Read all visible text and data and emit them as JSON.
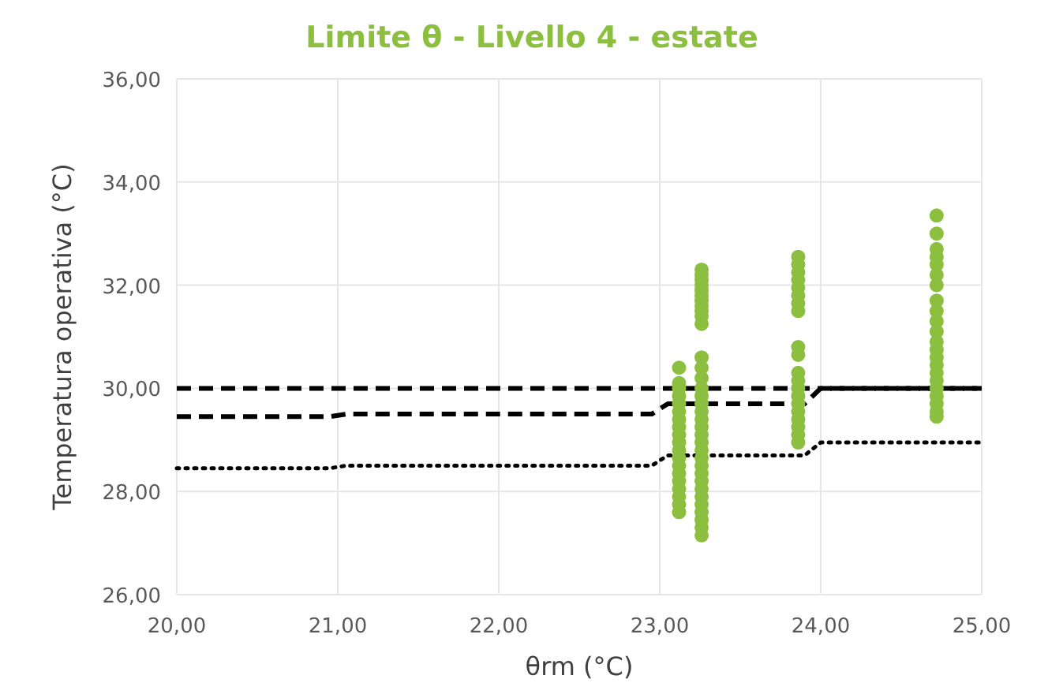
{
  "chart_data": {
    "type": "line",
    "title": "Limite θ - Livello 4 - estate",
    "xlabel": "θrm (°C)",
    "ylabel": "Temperatura operativa (°C)",
    "xlim": [
      20,
      25
    ],
    "xticks": [
      {
        "value": 20,
        "label": "20,00"
      },
      {
        "value": 21,
        "label": "21,00"
      },
      {
        "value": 22,
        "label": "22,00"
      },
      {
        "value": 23,
        "label": "23,00"
      },
      {
        "value": 24,
        "label": "24,00"
      },
      {
        "value": 25,
        "label": "25,00"
      }
    ],
    "ylim": [
      26,
      36
    ],
    "yticks": [
      {
        "value": 26,
        "label": "26,00"
      },
      {
        "value": 28,
        "label": "28,00"
      },
      {
        "value": 30,
        "label": "30,00"
      },
      {
        "value": 32,
        "label": "32,00"
      },
      {
        "value": 34,
        "label": "34,00"
      },
      {
        "value": 36,
        "label": "36,00"
      }
    ],
    "grid": true,
    "series": [
      {
        "color": "#000000",
        "line_style": "dashed",
        "marker": "none",
        "x": [
          20,
          25
        ],
        "values": [
          30.0,
          30.0
        ]
      },
      {
        "color": "#000000",
        "line_style": "dashed",
        "marker": "none",
        "x": [
          20,
          20.95,
          21.05,
          22.95,
          23.05,
          23.9,
          24.0,
          25
        ],
        "values": [
          29.45,
          29.45,
          29.5,
          29.5,
          29.7,
          29.7,
          30.0,
          30.0
        ]
      },
      {
        "color": "#000000",
        "line_style": "dotted",
        "marker": "none",
        "x": [
          20,
          20.95,
          21.05,
          22.95,
          23.05,
          23.9,
          24.0,
          25
        ],
        "values": [
          28.45,
          28.45,
          28.5,
          28.5,
          28.7,
          28.7,
          28.95,
          28.95
        ]
      },
      {
        "type": "scatter",
        "color": "#8cbf3f",
        "marker": "circle",
        "x": [
          23.12,
          23.12,
          23.12,
          23.12,
          23.12,
          23.12,
          23.12,
          23.12,
          23.12,
          23.12,
          23.12,
          23.12,
          23.12,
          23.12,
          23.12,
          23.12,
          23.12,
          23.12,
          23.12,
          23.26,
          23.26,
          23.26,
          23.26,
          23.26,
          23.26,
          23.26,
          23.26,
          23.26,
          23.26,
          23.26,
          23.26,
          23.26,
          23.26,
          23.26,
          23.26,
          23.26,
          23.26,
          23.26,
          23.26,
          23.26,
          23.26,
          23.26,
          23.26,
          23.26,
          23.26,
          23.26,
          23.26,
          23.26,
          23.26,
          23.26,
          23.26,
          23.26,
          23.26,
          23.86,
          23.86,
          23.86,
          23.86,
          23.86,
          23.86,
          23.86,
          23.86,
          23.86,
          23.86,
          23.86,
          23.86,
          23.86,
          23.86,
          23.86,
          23.86,
          23.86,
          23.86,
          23.86,
          23.86,
          24.72,
          24.72,
          24.72,
          24.72,
          24.72,
          24.72,
          24.72,
          24.72,
          24.72,
          24.72,
          24.72,
          24.72,
          24.72,
          24.72,
          24.72,
          24.72,
          24.72,
          24.72,
          24.72,
          24.72,
          24.72,
          24.72
        ],
        "values": [
          30.4,
          30.1,
          30.0,
          29.85,
          29.7,
          29.55,
          29.4,
          29.25,
          29.1,
          28.95,
          28.8,
          28.65,
          28.5,
          28.35,
          28.2,
          28.05,
          27.9,
          27.75,
          27.6,
          32.3,
          32.2,
          32.1,
          32.0,
          31.9,
          31.8,
          31.7,
          31.6,
          31.5,
          31.4,
          31.25,
          30.6,
          30.4,
          30.2,
          30.0,
          29.85,
          29.7,
          29.55,
          29.4,
          29.25,
          29.1,
          28.95,
          28.8,
          28.65,
          28.5,
          28.35,
          28.2,
          28.05,
          27.9,
          27.75,
          27.6,
          27.45,
          27.3,
          27.15,
          32.55,
          32.4,
          32.25,
          32.1,
          31.95,
          31.8,
          31.65,
          31.5,
          30.8,
          30.65,
          30.3,
          30.15,
          30.0,
          29.85,
          29.7,
          29.55,
          29.4,
          29.25,
          29.1,
          28.95,
          33.35,
          33.0,
          32.7,
          32.55,
          32.4,
          32.2,
          32.0,
          31.7,
          31.5,
          31.3,
          31.1,
          30.9,
          30.75,
          30.6,
          30.45,
          30.3,
          30.15,
          30.0,
          29.85,
          29.7,
          29.55,
          29.45
        ]
      }
    ]
  }
}
